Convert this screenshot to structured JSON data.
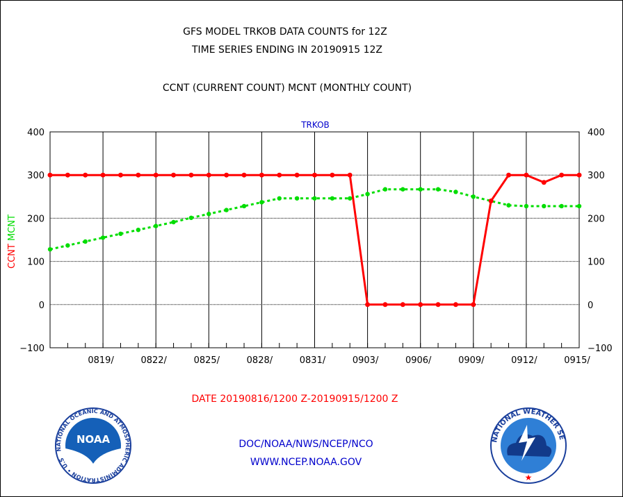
{
  "chart_data": {
    "type": "line",
    "title_lines": [
      "GFS MODEL TRKOB DATA COUNTS for 12Z",
      "TIME SERIES ENDING IN 20190915 12Z"
    ],
    "subtitle": "CCNT (CURRENT COUNT) MCNT (MONTHLY COUNT)",
    "panel_label": "TRKOB",
    "ylabel_parts": [
      {
        "text": "CCNT",
        "color": "#ff0000"
      },
      {
        "text": "MCNT",
        "color": "#00dd00"
      }
    ],
    "xlabel": "DATE 20190816/1200 Z-20190915/1200 Z",
    "ylim": [
      -100,
      400
    ],
    "yticks": [
      400,
      300,
      200,
      100,
      0,
      -100
    ],
    "ytick_labels": [
      "400",
      "300",
      "200",
      "100",
      "0",
      "−100"
    ],
    "xlim": [
      0,
      30
    ],
    "xticks": [
      3,
      6,
      9,
      12,
      15,
      18,
      21,
      24,
      27,
      30
    ],
    "xtick_labels": [
      "0819/",
      "0822/",
      "0825/",
      "0828/",
      "0831/",
      "0903/",
      "0906/",
      "0909/",
      "0912/",
      "0915/"
    ],
    "grid": true,
    "series": [
      {
        "name": "CCNT",
        "color": "#ff0000",
        "style": "solid",
        "x": [
          0,
          1,
          2,
          3,
          4,
          5,
          6,
          7,
          8,
          9,
          10,
          11,
          12,
          13,
          14,
          15,
          16,
          17,
          18,
          19,
          20,
          21,
          22,
          23,
          24,
          25,
          26,
          27,
          28,
          29,
          30
        ],
        "values": [
          300,
          300,
          300,
          300,
          300,
          300,
          300,
          300,
          300,
          300,
          300,
          300,
          300,
          300,
          300,
          300,
          300,
          300,
          0,
          0,
          0,
          0,
          0,
          0,
          0,
          240,
          300,
          300,
          283,
          300,
          300
        ]
      },
      {
        "name": "MCNT",
        "color": "#00dd00",
        "style": "dotted",
        "x": [
          0,
          1,
          2,
          3,
          4,
          5,
          6,
          7,
          8,
          9,
          10,
          11,
          12,
          13,
          14,
          15,
          16,
          17,
          18,
          19,
          20,
          21,
          22,
          23,
          24,
          25,
          26,
          27,
          28,
          29,
          30
        ],
        "values": [
          128,
          137,
          146,
          155,
          164,
          173,
          182,
          191,
          201,
          210,
          219,
          228,
          237,
          246,
          246,
          246,
          246,
          246,
          256,
          267,
          267,
          267,
          267,
          261,
          250,
          240,
          230,
          228,
          228,
          228,
          228
        ]
      }
    ]
  },
  "footer": {
    "line1": "DOC/NOAA/NWS/NCEP/NCO",
    "line2": "WWW.NCEP.NOAA.GOV"
  },
  "logos": {
    "left": {
      "initials": "NOAA",
      "ring_text": "NATIONAL OCEANIC AND ATMOSPHERIC ADMINISTRATION • U.S. DEPARTMENT OF COMMERCE •"
    },
    "right": {
      "ring_text": "NATIONAL WEATHER SERVICE"
    }
  },
  "colors": {
    "ccnt": "#ff0000",
    "mcnt": "#00dd00",
    "blue_text": "#0000cc"
  }
}
